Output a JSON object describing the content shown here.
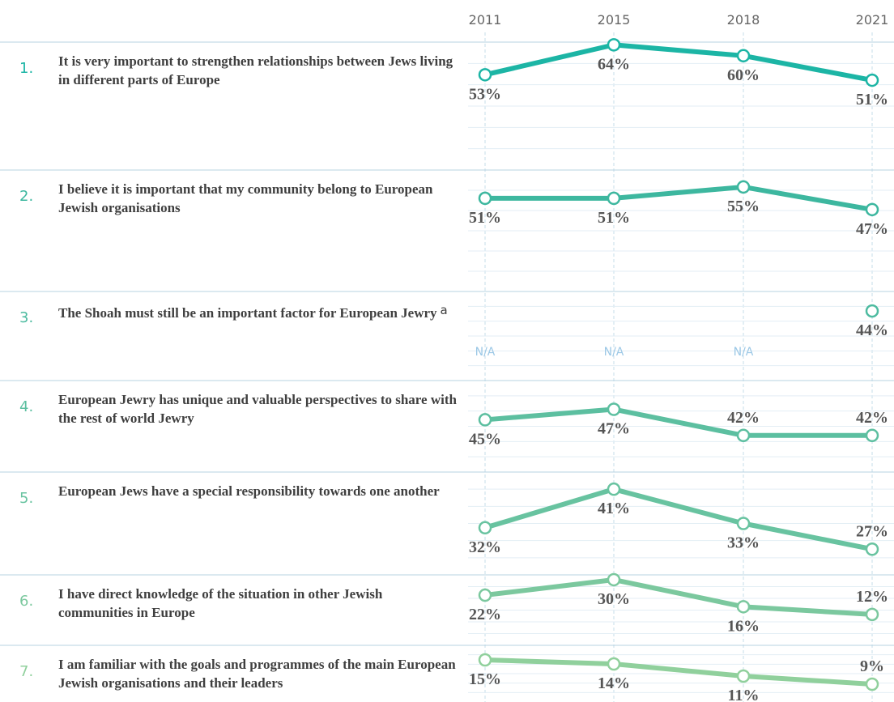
{
  "header": {
    "years": [
      "2011",
      "2015",
      "2018",
      "2021"
    ]
  },
  "chart_data": [
    {
      "type": "line",
      "number": "1.",
      "title": "It is very important to strengthen relationships between Jews living in different parts of Europe",
      "values": [
        53,
        64,
        60,
        51
      ],
      "value_labels": [
        "53%",
        "64%",
        "60%",
        "51%"
      ],
      "color": "#1cb5a5",
      "ylim": [
        18,
        65
      ]
    },
    {
      "type": "line",
      "number": "2.",
      "title": "I believe it is important that my community belong to European Jewish organisations",
      "values": [
        51,
        51,
        55,
        47
      ],
      "value_labels": [
        "51%",
        "51%",
        "55%",
        "47%"
      ],
      "color": "#3db79f",
      "ylim": [
        18,
        61
      ]
    },
    {
      "type": "line",
      "number": "3.",
      "title": "The Shoah must still be an important factor for European Jewry",
      "note": "a",
      "values": [
        null,
        null,
        null,
        44
      ],
      "value_labels": [
        "N/A",
        "N/A",
        "N/A",
        "44%"
      ],
      "color": "#4dbba0",
      "ylim": [
        19,
        51
      ]
    },
    {
      "type": "line",
      "number": "4.",
      "title": "European Jewry has unique and valuable perspectives to share with the rest of world Jewry",
      "values": [
        45,
        47,
        42,
        42
      ],
      "value_labels": [
        "45%",
        "47%",
        "42%",
        "42%"
      ],
      "color": "#5cbfa0",
      "ylim": [
        35,
        52.5
      ]
    },
    {
      "type": "line",
      "number": "5.",
      "title": "European Jews have a special responsibility towards one another",
      "values": [
        32,
        41,
        33,
        27
      ],
      "value_labels": [
        "32%",
        "41%",
        "33%",
        "27%"
      ],
      "color": "#68c3a0",
      "ylim": [
        21,
        45
      ]
    },
    {
      "type": "line",
      "number": "6.",
      "title": "I have direct knowledge of the situation in other Jewish communities in Europe",
      "values": [
        22,
        30,
        16,
        12
      ],
      "value_labels": [
        "22%",
        "30%",
        "16%",
        "12%"
      ],
      "color": "#7bc89e",
      "ylim": [
        -4,
        32.5
      ]
    },
    {
      "type": "line",
      "number": "7.",
      "title": "I am familiar with the goals and programmes of the main European Jewish organisations and their leaders",
      "values": [
        15,
        14,
        11,
        9
      ],
      "value_labels": [
        "15%",
        "14%",
        "11%",
        "9%"
      ],
      "color": "#90d09c",
      "ylim": [
        4.6,
        18.6
      ]
    }
  ]
}
